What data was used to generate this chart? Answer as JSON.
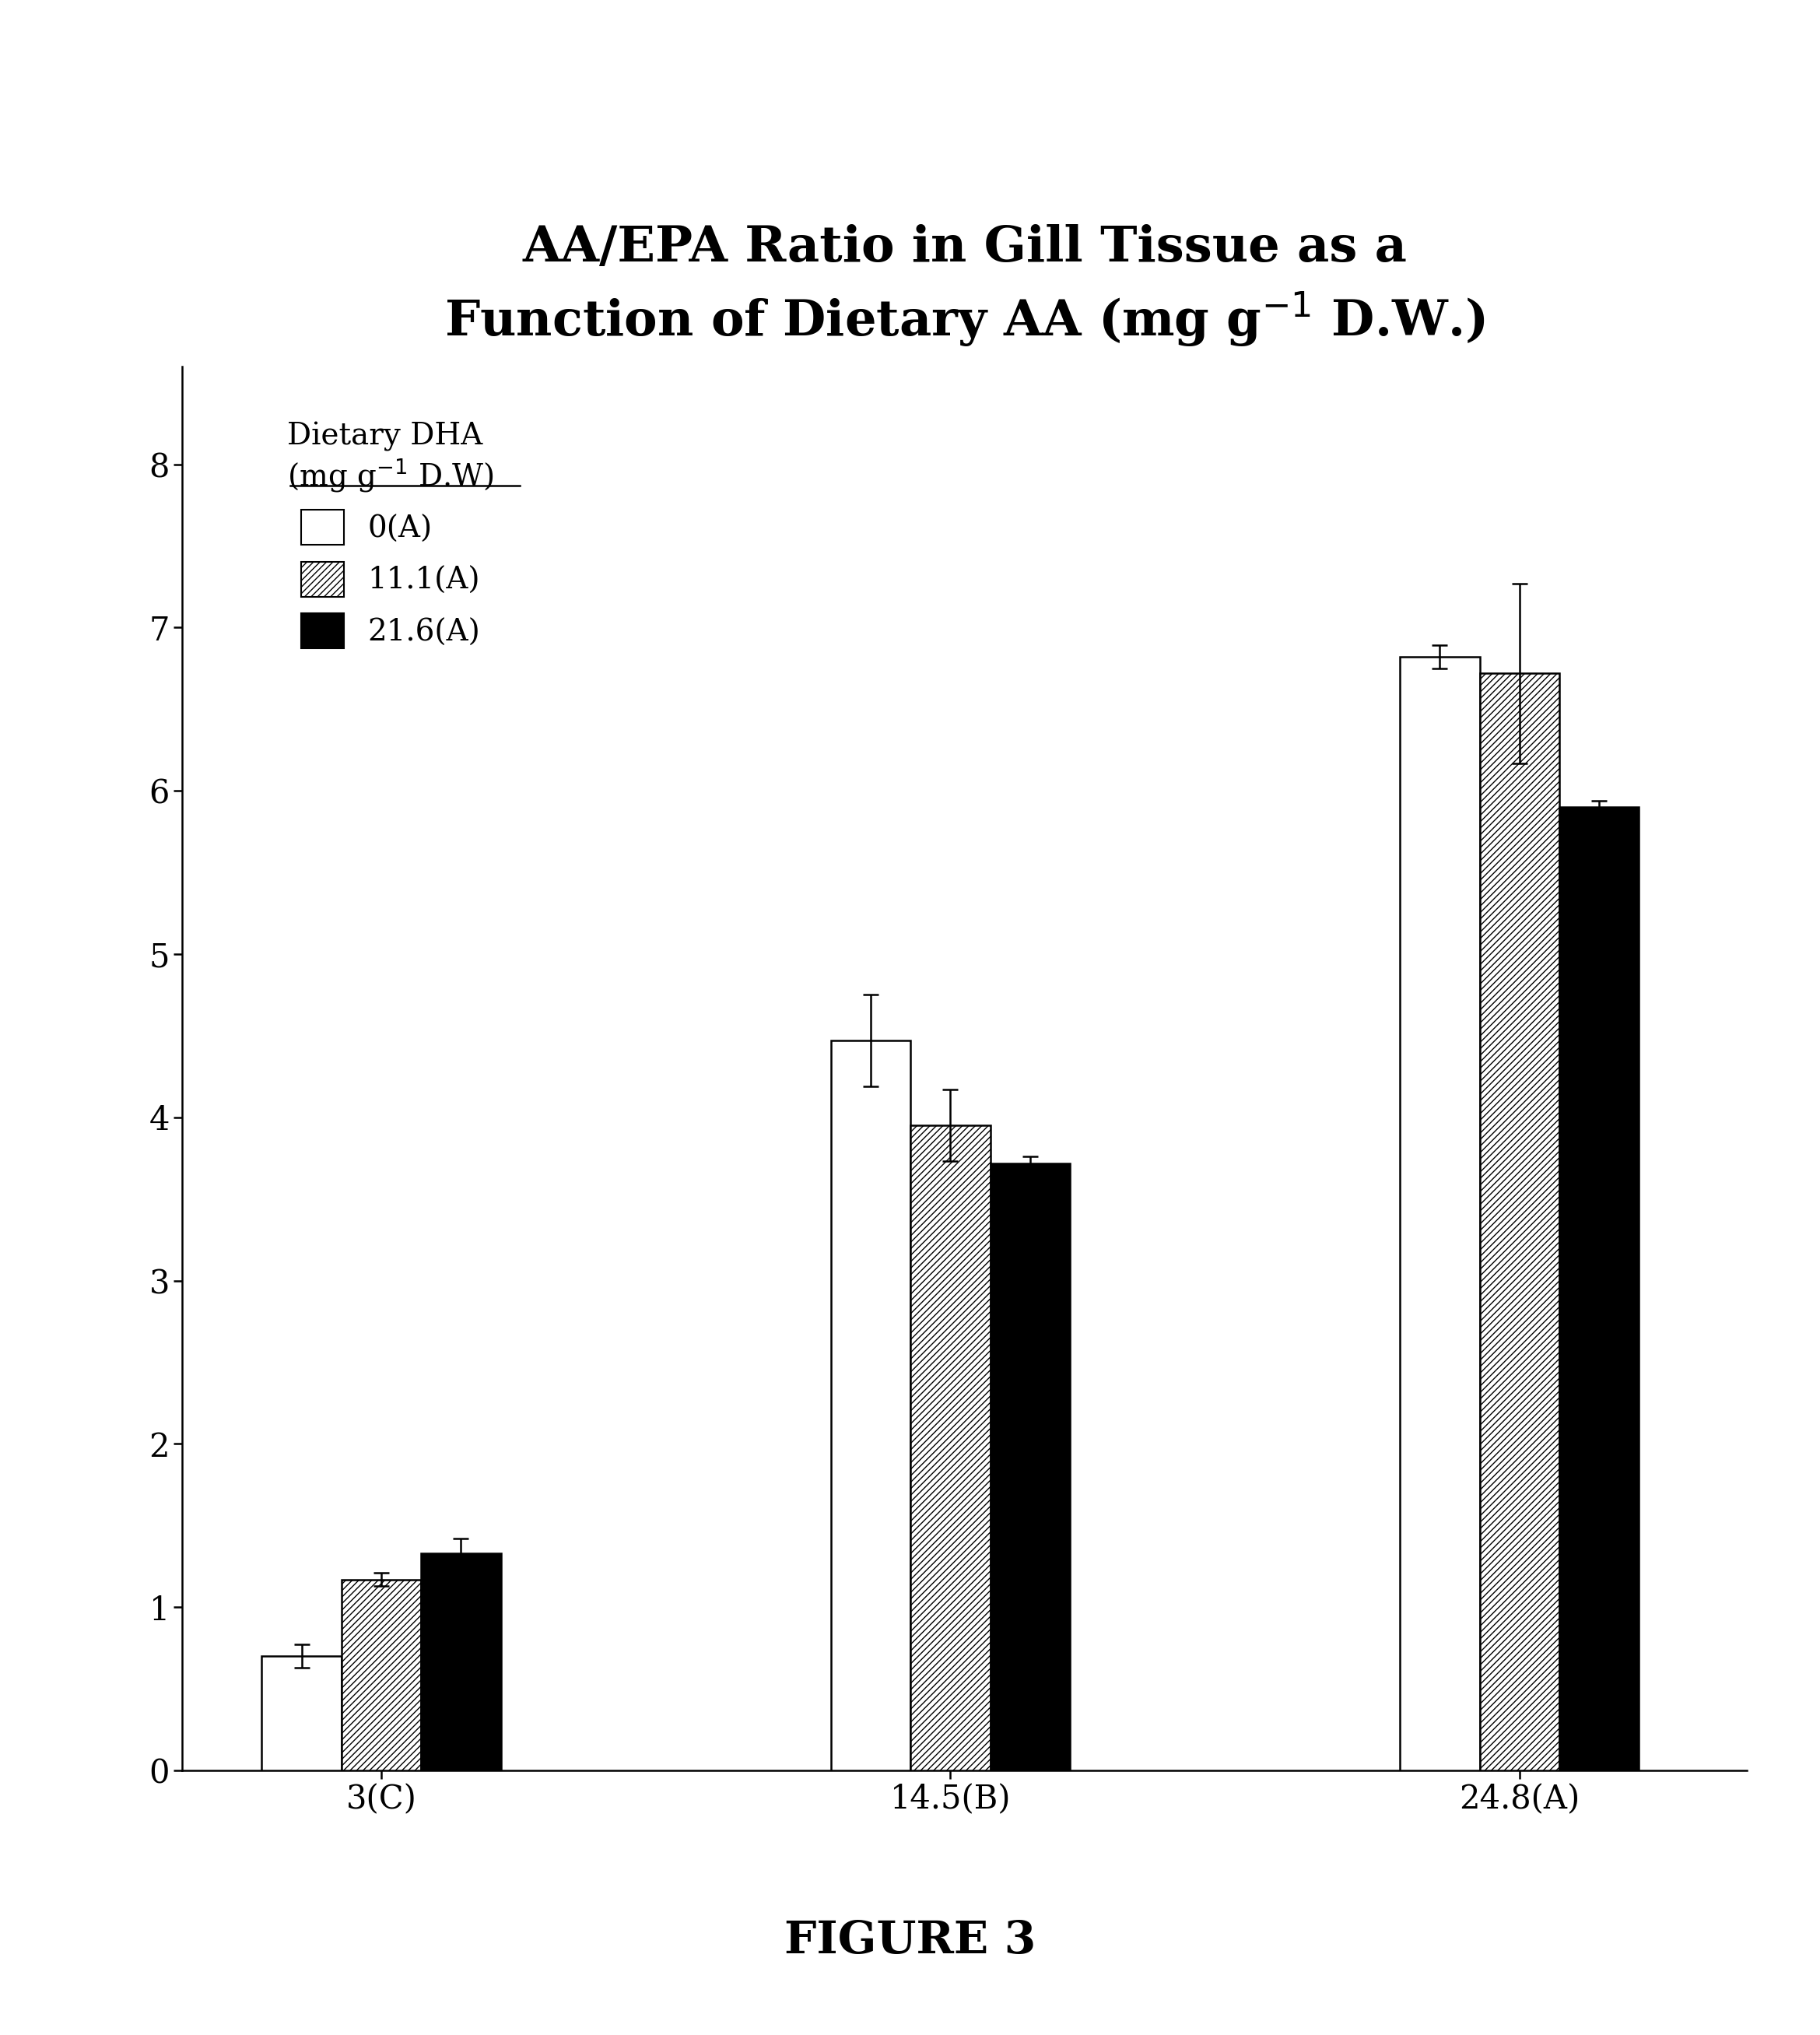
{
  "title": "AA/EPA Ratio in Gill Tissue as a\nFunction of Dietary AA (mg g$^{-1}$ D.W.)",
  "figure_label": "FIGURE 3",
  "categories": [
    "3(C)",
    "14.5(B)",
    "24.8(A)"
  ],
  "series": [
    {
      "label": "0(A)",
      "facecolor": "white",
      "hatch": "",
      "values": [
        0.7,
        4.47,
        6.82
      ],
      "errors": [
        0.07,
        0.28,
        0.07
      ]
    },
    {
      "label": "11.1(A)",
      "facecolor": "white",
      "hatch": "////",
      "values": [
        1.17,
        3.95,
        6.72
      ],
      "errors": [
        0.04,
        0.22,
        0.55
      ]
    },
    {
      "label": "21.6(A)",
      "facecolor": "black",
      "hatch": "",
      "values": [
        1.33,
        3.72,
        5.9
      ],
      "errors": [
        0.09,
        0.04,
        0.04
      ]
    }
  ],
  "ylim": [
    0,
    8.6
  ],
  "yticks": [
    0,
    1,
    2,
    3,
    4,
    5,
    6,
    7,
    8
  ],
  "bar_width": 0.28,
  "group_centers": [
    1.0,
    3.0,
    5.0
  ],
  "legend_title_l1": "Dietary DHA",
  "legend_title_l2": "(mg g$^{-1}$ D.W)",
  "background_color": "#ffffff"
}
